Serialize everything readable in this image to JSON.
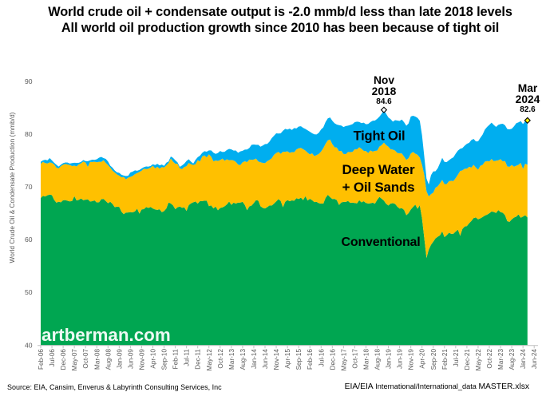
{
  "title": {
    "line1": "World crude oil + condensate output is -2.0 mmb/d less than late 2018 levels",
    "line2": "All world oil production growth since 2010 has been because of tight oil"
  },
  "series_labels": {
    "tight": "Tight Oil",
    "deepwater_line1": "Deep Water",
    "deepwater_line2": "+ Oil Sands",
    "conventional": "Conventional"
  },
  "annotations": {
    "peak": {
      "month": "Nov",
      "year": "2018",
      "value": "84.6"
    },
    "latest": {
      "month": "Mar",
      "year": "2024",
      "value": "82.6"
    }
  },
  "watermark": "artberman.com",
  "footer": {
    "left": "Source: EIA, Cansim, Enverus &  Labyrinth Consulting Services, Inc",
    "right_part1": "EIA/EIA",
    "right_part2": " International/International_data ",
    "right_part3": "MASTER.xlsx"
  },
  "colors": {
    "conventional": "#00A651",
    "deep_water_oil_sands": "#FFC000",
    "tight_oil": "#00AEEF",
    "peak_marker_fill": "#FFFFFF",
    "latest_marker_fill": "#FFFF00",
    "marker_stroke": "#000000",
    "axis_line": "#BFBFBF",
    "tick_label": "#595959"
  },
  "chart_data": {
    "type": "area",
    "stacked": true,
    "title": "World crude oil + condensate output is -2.0 mmb/d less than late 2018 levels",
    "subtitle": "All world oil production growth since 2010 has been because of tight oil",
    "ylabel": "World Crude Oil & Condensate Production (mmb/d)",
    "xlabel": "",
    "ylim": [
      40,
      90
    ],
    "y_ticks": [
      40,
      50,
      60,
      70,
      80,
      90
    ],
    "grid": false,
    "legend_position": "labels-on-areas",
    "x_start": "Feb-2006",
    "x_end": "Mar-2024",
    "frequency": "monthly",
    "x_tick_step_months": 5,
    "x_tick_labels": [
      "Feb-06",
      "Jul-06",
      "Dec-06",
      "May-07",
      "Oct-07",
      "Mar-08",
      "Aug-08",
      "Jan-09",
      "Jun-09",
      "Nov-09",
      "Apr-10",
      "Sep-10",
      "Feb-11",
      "Jul-11",
      "Dec-11",
      "May-12",
      "Oct-12",
      "Mar-13",
      "Aug-13",
      "Jan-14",
      "Jun-14",
      "Nov-14",
      "Apr-15",
      "Sep-15",
      "Feb-16",
      "Jul-16",
      "Dec-16",
      "May-17",
      "Oct-17",
      "Mar-18",
      "Aug-18",
      "Jan-19",
      "Jun-19",
      "Nov-19",
      "Apr-20",
      "Sep-20",
      "Feb-21",
      "Jul-21",
      "Dec-21",
      "May-22",
      "Oct-22",
      "Mar-23",
      "Aug-23",
      "Jan-24",
      "Jun-24"
    ],
    "series": [
      {
        "name": "Conventional",
        "color": "#00A651",
        "values": [
          67.89,
          68.29,
          68.18,
          68.4,
          68.56,
          68.44,
          67.54,
          67.0,
          67.19,
          67.09,
          67.48,
          67.49,
          67.37,
          67.26,
          67.32,
          68.24,
          67.43,
          67.55,
          67.8,
          67.48,
          67.58,
          67.64,
          67.23,
          67.28,
          67.44,
          67.05,
          67.09,
          67.66,
          67.73,
          67.33,
          66.91,
          67.18,
          66.78,
          66.16,
          66.24,
          66.21,
          65.31,
          64.83,
          65.14,
          65.15,
          65.23,
          65.18,
          65.36,
          65.87,
          64.93,
          65.74,
          65.77,
          66.17,
          66.02,
          66.19,
          65.91,
          65.72,
          65.65,
          65.75,
          65.2,
          65.42,
          65.91,
          67.04,
          66.86,
          66.5,
          65.78,
          66.14,
          66.28,
          66.04,
          66.13,
          65.46,
          66.55,
          66.88,
          67.09,
          67.23,
          66.83,
          67.3,
          67.3,
          67.39,
          67.39,
          66.34,
          66.49,
          65.93,
          66.26,
          65.57,
          66.01,
          66.11,
          66.32,
          66.68,
          67.22,
          66.59,
          67.01,
          66.83,
          67.02,
          67.02,
          67.17,
          66.58,
          65.59,
          66.31,
          66.45,
          66.95,
          67.49,
          67.4,
          66.32,
          66.02,
          65.91,
          66.18,
          66.48,
          66.45,
          66.83,
          67.25,
          67.69,
          67.32,
          66.15,
          67.18,
          67.5,
          67.29,
          67.44,
          67.39,
          67.85,
          67.71,
          67.96,
          67.5,
          68.23,
          67.42,
          67.75,
          67.47,
          67.12,
          67.15,
          66.91,
          66.83,
          66.84,
          67.92,
          68.5,
          68.07,
          67.7,
          67.73,
          67.49,
          66.58,
          67.04,
          67.15,
          67.16,
          67.32,
          66.96,
          67.02,
          66.94,
          66.87,
          67.48,
          67.06,
          67.29,
          66.95,
          66.86,
          66.89,
          67.01,
          66.82,
          67.53,
          68.1,
          67.76,
          67.4,
          66.79,
          66.48,
          66.86,
          66.91,
          66.78,
          66.24,
          65.89,
          65.99,
          65.63,
          64.63,
          65.01,
          65.71,
          66.19,
          66.62,
          65.85,
          66.51,
          64.04,
          60.3,
          56.54,
          58.12,
          59.02,
          59.6,
          60.23,
          60.56,
          60.81,
          61.57,
          60.47,
          60.83,
          61.32,
          61.1,
          61.12,
          61.53,
          61.89,
          60.74,
          62.02,
          62.49,
          62.57,
          63.1,
          63.54,
          64.09,
          64.21,
          63.85,
          64.04,
          64.29,
          64.56,
          64.73,
          65.0,
          65.34,
          65.25,
          65.06,
          65.6,
          65.22,
          65.09,
          64.65,
          63.5,
          63.38,
          63.85,
          64.19,
          64.36,
          64.79,
          64.14,
          64.38,
          64.62,
          64.2
        ]
      },
      {
        "name": "Deep Water + Oil Sands",
        "color": "#FFC000",
        "values": [
          6.5,
          6.45,
          6.34,
          6.05,
          6.09,
          6.11,
          6.71,
          6.65,
          6.32,
          6.85,
          6.74,
          6.86,
          6.86,
          6.89,
          6.63,
          5.8,
          6.44,
          6.74,
          6.67,
          7.33,
          7.04,
          6.16,
          7.51,
          7.45,
          7.35,
          7.62,
          7.67,
          7.09,
          7.33,
          7.23,
          7.23,
          6.49,
          6.3,
          6.58,
          6.12,
          5.93,
          6.5,
          7.05,
          6.29,
          6.6,
          6.67,
          6.9,
          7.06,
          6.76,
          7.91,
          7.34,
          7.69,
          7.19,
          7.44,
          7.5,
          8.09,
          7.8,
          8.17,
          7.7,
          8.55,
          8.26,
          8.16,
          7.47,
          8.53,
          8.29,
          8.63,
          8.22,
          7.24,
          7.35,
          7.62,
          8.47,
          7.98,
          7.41,
          7.06,
          7.06,
          8.24,
          7.51,
          8.46,
          8.58,
          8.21,
          9.84,
          9.24,
          8.92,
          8.75,
          9.36,
          9.08,
          9.26,
          8.66,
          8.55,
          7.83,
          8.52,
          7.99,
          7.91,
          7.21,
          7.12,
          7.5,
          8.28,
          9.12,
          8.86,
          8.69,
          8.23,
          7.87,
          7.42,
          8.35,
          8.53,
          8.58,
          8.69,
          8.65,
          8.98,
          9.26,
          9.17,
          8.94,
          8.96,
          10.52,
          9.47,
          9.25,
          9.18,
          9.15,
          9.18,
          9.23,
          9.61,
          9.44,
          9.65,
          8.65,
          9.06,
          8.42,
          8.9,
          8.73,
          8.88,
          9.34,
          9.88,
          10.52,
          10.27,
          10.33,
          10.91,
          10.42,
          9.8,
          9.96,
          10.18,
          9.81,
          9.09,
          9.04,
          9.3,
          9.64,
          9.62,
          10.18,
          10.24,
          10.05,
          10.16,
          9.55,
          9.83,
          9.54,
          10.03,
          9.69,
          10.01,
          9.35,
          9.53,
          10.17,
          11.0,
          11.14,
          11.14,
          10.27,
          10.16,
          10.1,
          10.18,
          10.49,
          10.35,
          10.12,
          10.49,
          10.43,
          10.62,
          10.44,
          9.68,
          10.24,
          9.05,
          10.14,
          12.02,
          12.62,
          10.07,
          9.62,
          9.3,
          9.61,
          9.56,
          9.89,
          9.74,
          10.05,
          9.71,
          9.75,
          10.07,
          10.0,
          10.15,
          10.43,
          12.28,
          11.12,
          10.94,
          10.88,
          10.71,
          10.12,
          10.1,
          9.46,
          9.39,
          9.97,
          9.88,
          10.23,
          10.17,
          9.83,
          9.95,
          9.63,
          9.91,
          9.45,
          10.04,
          9.75,
          10.25,
          10.39,
          10.43,
          10.3,
          9.65,
          9.64,
          9.41,
          10.41,
          9.04,
          9.79,
          10.0
        ]
      },
      {
        "name": "Tight Oil",
        "color": "#00AEEF",
        "values": [
          0.37,
          0.28,
          0.62,
          0.58,
          0.82,
          0.48,
          0.32,
          0.55,
          0.35,
          0.28,
          0.28,
          0.28,
          0.38,
          0.28,
          0.56,
          0.53,
          0.68,
          0.28,
          0.28,
          0.28,
          0.28,
          1.08,
          0.28,
          0.43,
          0.34,
          0.57,
          0.78,
          0.93,
          0.4,
          0.75,
          0.68,
          0.35,
          0.56,
          0.38,
          0.39,
          0.53,
          0.49,
          0.28,
          0.63,
          0.37,
          0.84,
          0.81,
          0.72,
          0.43,
          0.37,
          0.42,
          0.28,
          0.52,
          0.37,
          0.28,
          0.28,
          0.61,
          0.55,
          0.63,
          0.48,
          0.31,
          0.52,
          0.29,
          0.38,
          0.71,
          0.63,
          0.28,
          0.28,
          0.68,
          0.65,
          0.99,
          0.71,
          0.5,
          0.28,
          0.84,
          0.56,
          1.1,
          0.68,
          0.8,
          1.07,
          0.74,
          1.19,
          1.63,
          1.25,
          1.5,
          1.71,
          1.25,
          1.67,
          1.77,
          2.15,
          1.99,
          1.88,
          2.16,
          2.24,
          2.59,
          2.17,
          2.21,
          2.38,
          2.2,
          2.83,
          2.85,
          2.61,
          3.16,
          2.95,
          3.3,
          3.63,
          3.28,
          3.45,
          3.82,
          3.61,
          3.73,
          3.49,
          3.88,
          3.97,
          4.35,
          4.12,
          4.58,
          4.21,
          4.58,
          4.0,
          4.13,
          4.09,
          4.05,
          4.1,
          4.24,
          4.28,
          3.8,
          4.12,
          3.91,
          4.02,
          4.18,
          3.92,
          4.13,
          4.17,
          4.19,
          4.42,
          4.54,
          4.37,
          4.94,
          4.78,
          5.11,
          5.34,
          5.0,
          5.14,
          5.25,
          5.15,
          5.26,
          4.79,
          4.87,
          5.33,
          5.1,
          5.54,
          5.37,
          5.83,
          5.74,
          6.01,
          5.68,
          5.94,
          6.2,
          5.93,
          5.54,
          5.72,
          5.3,
          5.77,
          6.15,
          6.13,
          6.42,
          6.51,
          6.47,
          6.59,
          7.03,
          6.86,
          7.04,
          6.99,
          6.97,
          5.6,
          3.45,
          2.42,
          2.25,
          3.58,
          4.02,
          3.12,
          3.41,
          3.8,
          4.19,
          4.22,
          4.16,
          3.98,
          4.2,
          4.5,
          4.61,
          4.56,
          4.21,
          4.22,
          4.38,
          4.72,
          4.54,
          5.23,
          4.91,
          4.95,
          5.4,
          5.3,
          5.73,
          6.06,
          6.47,
          6.94,
          6.88,
          6.86,
          6.4,
          6.72,
          6.66,
          7.13,
          6.79,
          7.07,
          7.1,
          6.88,
          7.63,
          8.07,
          8.03,
          7.92,
          8.5,
          8.05,
          8.4
        ]
      }
    ],
    "annotations": [
      {
        "label": "Nov 2018",
        "value": 84.6,
        "month_index": 153
      },
      {
        "label": "Mar 2024",
        "value": 82.6,
        "month_index": 217
      }
    ]
  }
}
